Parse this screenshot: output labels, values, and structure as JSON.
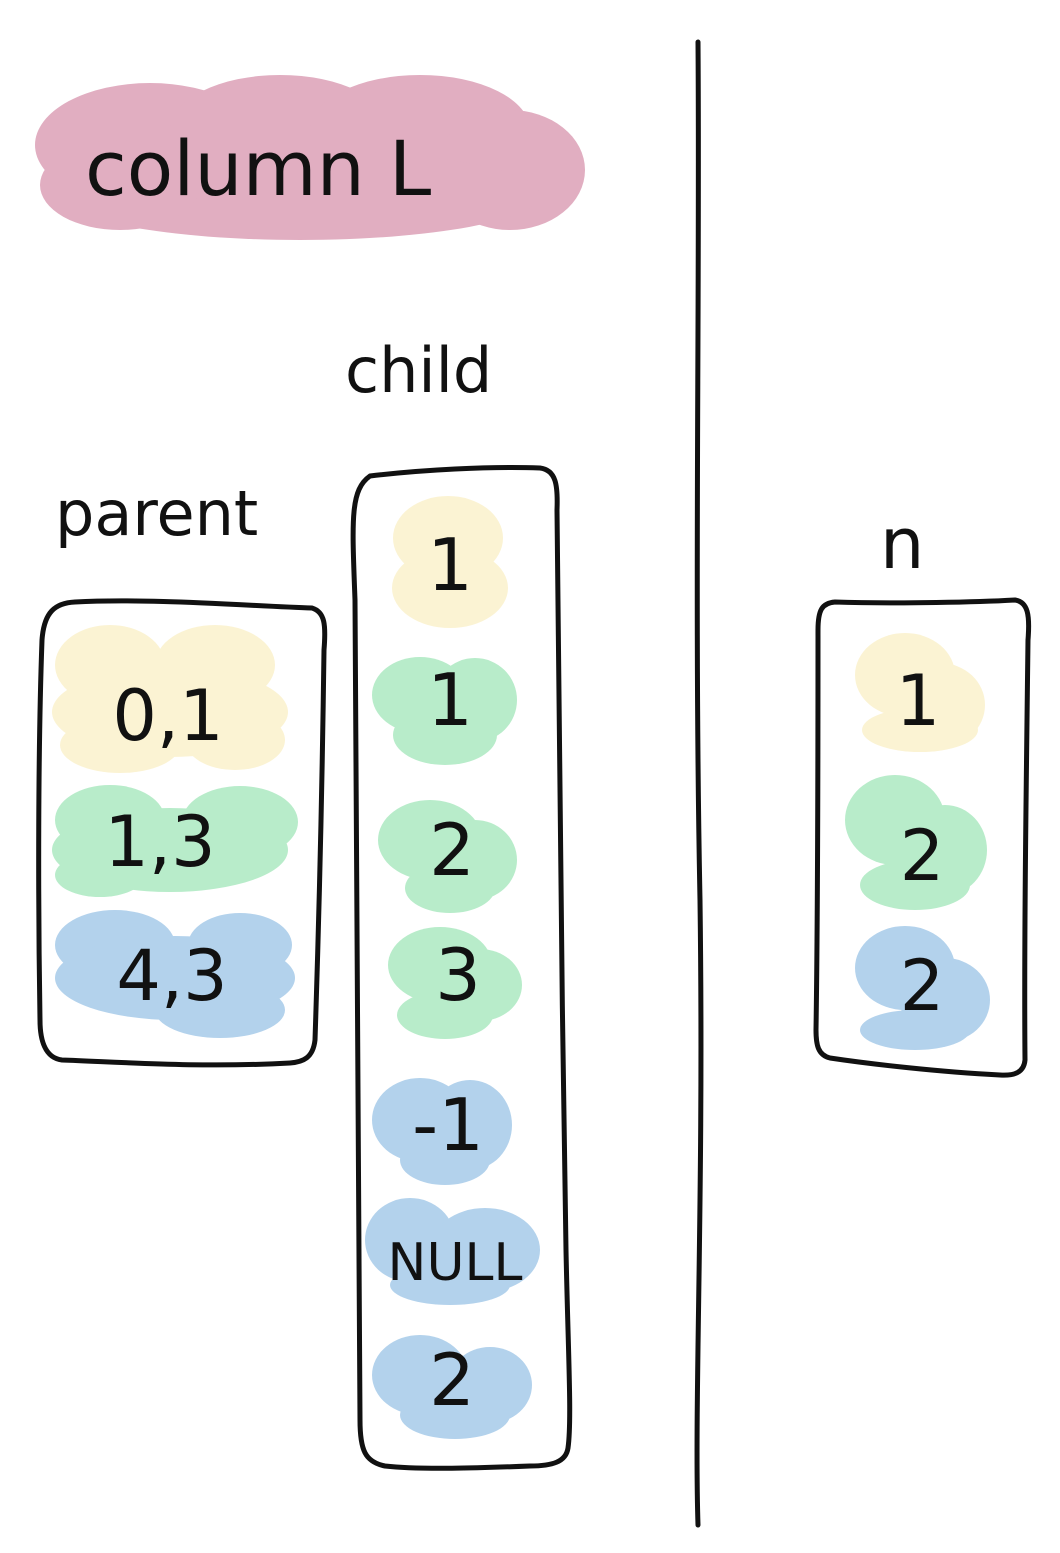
{
  "title": "column L",
  "left_panel": {
    "parent": {
      "label": "parent",
      "items": [
        {
          "text": "0,1",
          "color": "yellow"
        },
        {
          "text": "1,3",
          "color": "green"
        },
        {
          "text": "4,3",
          "color": "blue"
        }
      ]
    },
    "child": {
      "label": "child",
      "items": [
        {
          "text": "1",
          "color": "yellow"
        },
        {
          "text": "1",
          "color": "green"
        },
        {
          "text": "2",
          "color": "green"
        },
        {
          "text": "3",
          "color": "green"
        },
        {
          "text": "-1",
          "color": "blue"
        },
        {
          "text": "NULL",
          "color": "blue"
        },
        {
          "text": "2",
          "color": "blue"
        }
      ]
    }
  },
  "right_panel": {
    "n": {
      "label": "n",
      "items": [
        {
          "text": "1",
          "color": "yellow"
        },
        {
          "text": "2",
          "color": "green"
        },
        {
          "text": "2",
          "color": "blue"
        }
      ]
    }
  },
  "colors": {
    "title_highlight": "#e1aec1",
    "yellow": "#fbf3d3",
    "green": "#b8ecca",
    "blue": "#b3d2ec",
    "ink": "#111111"
  }
}
